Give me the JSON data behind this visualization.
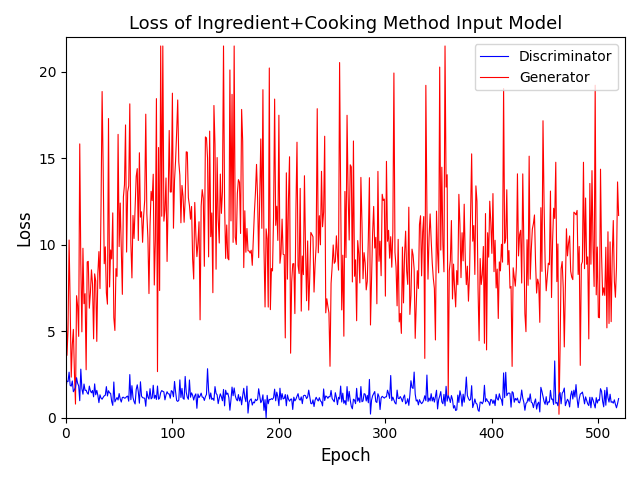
{
  "title": "Loss of Ingredient+Cooking Method Input Model",
  "xlabel": "Epoch",
  "ylabel": "Loss",
  "xlim": [
    0,
    525
  ],
  "ylim": [
    0,
    22
  ],
  "yticks": [
    0,
    5,
    10,
    15,
    20
  ],
  "xticks": [
    0,
    100,
    200,
    300,
    400,
    500
  ],
  "discriminator_color": "#0000ff",
  "generator_color": "#ff0000",
  "discriminator_label": "Discriminator",
  "generator_label": "Generator",
  "n_epochs": 520,
  "seed": 12345,
  "figsize": [
    6.4,
    4.8
  ],
  "dpi": 100,
  "title_fontsize": 13,
  "axis_fontsize": 12,
  "legend_fontsize": 10,
  "linewidth": 0.8,
  "background_color": "#ffffff"
}
